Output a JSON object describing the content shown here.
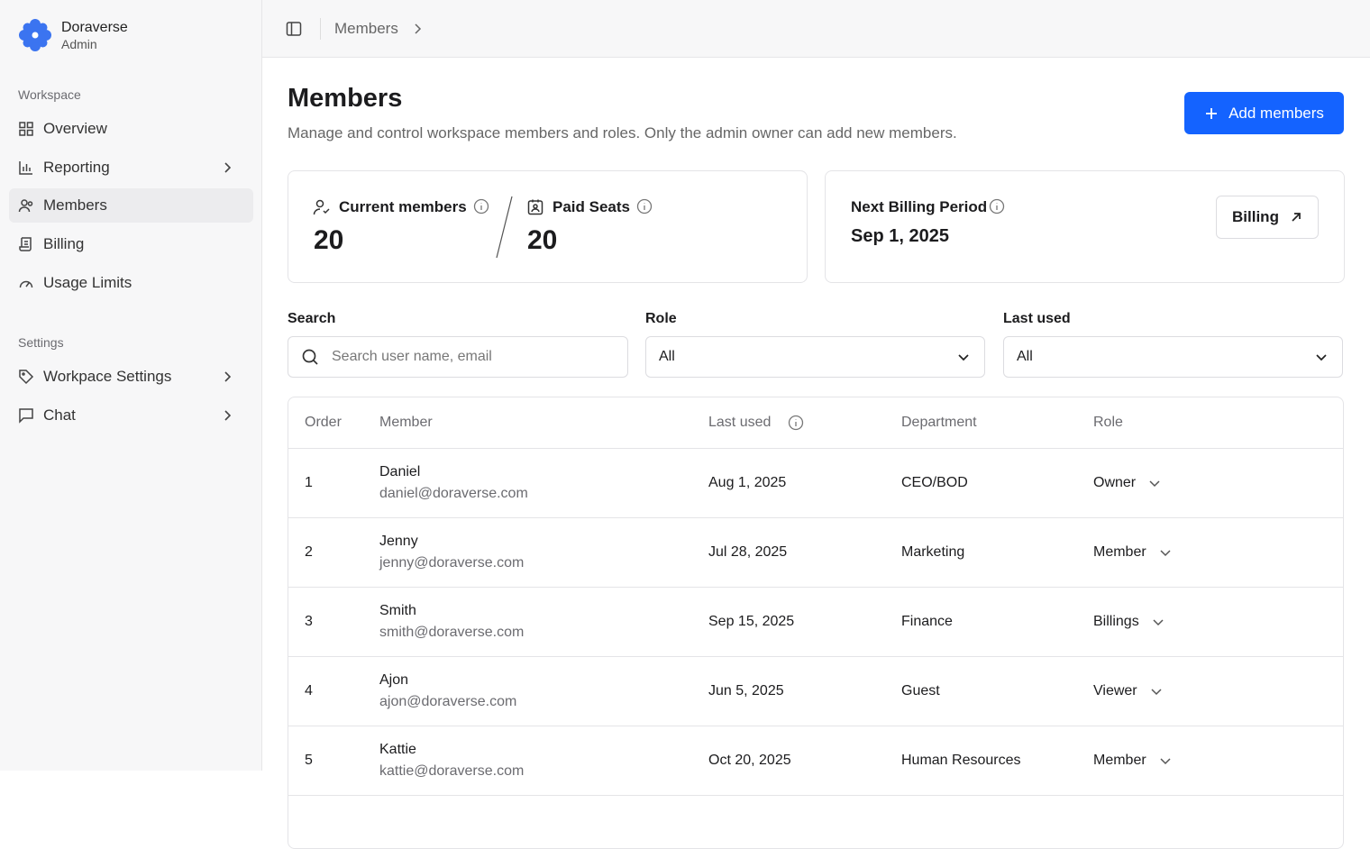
{
  "sidebar": {
    "brand": {
      "name": "Doraverse",
      "subtitle": "Admin"
    },
    "sections": [
      {
        "title": "Workspace",
        "items": [
          "Overview",
          "Reporting",
          "Members",
          "Billing",
          "Usage Limits"
        ]
      },
      {
        "title": "Settings",
        "items": [
          "Workpace Settings",
          "Chat"
        ]
      }
    ]
  },
  "breadcrumb": [
    "Members"
  ],
  "header": {
    "title": "Members",
    "description": "Manage and control workspace members and roles. Only the admin owner can add new members.",
    "button": "Add members"
  },
  "stats": {
    "current_members": {
      "label": "Current members",
      "value": 20
    },
    "paid_seats": {
      "label": "Paid Seats",
      "value": 20
    },
    "billing": {
      "label": "Next Billing Period",
      "date": "Sep 1, 2025",
      "button": "Billing"
    }
  },
  "filters": [
    {
      "label": "Search",
      "placeholder": "Search user name, email"
    },
    {
      "label": "Role",
      "value": "All"
    },
    {
      "label": "Last used",
      "value": "All"
    }
  ],
  "table": {
    "columns": [
      "Order",
      "Member",
      "Last used",
      "Department",
      "Role"
    ],
    "rows": [
      {
        "order": 1,
        "name": "Daniel",
        "email": "daniel@doraverse.com",
        "last_used": "Aug 1, 2025",
        "department": "CEO/BOD",
        "role": "Owner"
      },
      {
        "order": 2,
        "name": "Jenny",
        "email": "jenny@doraverse.com",
        "last_used": "Jul 28, 2025",
        "department": "Marketing",
        "role": "Member"
      },
      {
        "order": 3,
        "name": "Smith",
        "email": "smith@doraverse.com",
        "last_used": "Sep 15, 2025",
        "department": "Finance",
        "role": "Billings"
      },
      {
        "order": 4,
        "name": "Ajon",
        "email": "ajon@doraverse.com",
        "last_used": "Jun 5, 2025",
        "department": "Guest",
        "role": "Viewer"
      },
      {
        "order": 5,
        "name": "Kattie",
        "email": "kattie@doraverse.com",
        "last_used": "Oct 20, 2025",
        "department": "Human Resources",
        "role": "Member"
      }
    ]
  }
}
